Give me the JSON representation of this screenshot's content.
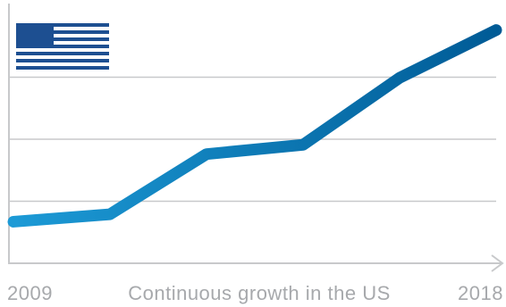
{
  "chart_data": {
    "type": "line",
    "x_label": "Continuous growth in the US",
    "categories": [
      "2009",
      null,
      null,
      null,
      null,
      "2018"
    ],
    "series": [
      {
        "values": [
          0.67,
          0.79,
          1.76,
          1.91,
          2.99,
          3.76
        ]
      }
    ],
    "line_gradient": [
      "#1c9ad6",
      "#005b96"
    ],
    "ylim": [
      0,
      4
    ],
    "yticks": [
      1,
      2,
      3
    ],
    "grid": true
  }
}
